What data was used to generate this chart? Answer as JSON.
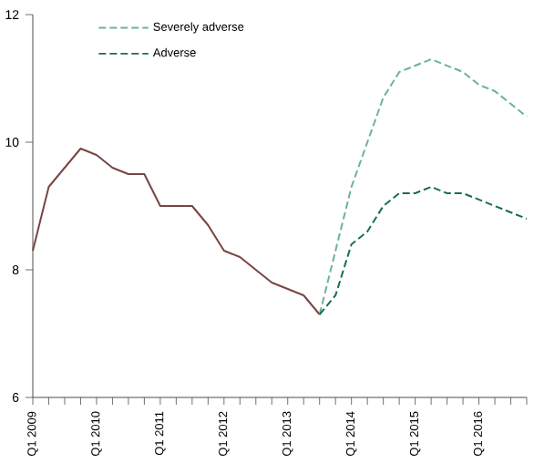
{
  "chart_data": {
    "type": "line",
    "categories": [
      "Q1 2009",
      null,
      null,
      null,
      "Q1 2010",
      null,
      null,
      null,
      "Q1 2011",
      null,
      null,
      null,
      "Q1 2012",
      null,
      null,
      null,
      "Q1 2013",
      null,
      null,
      null,
      "Q1 2014",
      null,
      null,
      null,
      "Q1 2015",
      null,
      null,
      null,
      "Q1 2016",
      null,
      null,
      null
    ],
    "ylim": [
      6,
      12
    ],
    "yticks": [
      6,
      8,
      10,
      12
    ],
    "legend": "top left",
    "grid": false,
    "series": [
      {
        "color": "#7a4444",
        "line_style": "solid",
        "values": [
          8.3,
          9.3,
          9.6,
          9.9,
          9.8,
          9.6,
          9.5,
          9.5,
          9.0,
          9.0,
          9.0,
          8.7,
          8.3,
          8.2,
          8.0,
          7.8,
          7.7,
          7.6,
          7.3,
          null,
          null,
          null,
          null,
          null,
          null,
          null,
          null,
          null,
          null,
          null,
          null,
          null
        ]
      },
      {
        "name": "Severely adverse",
        "color": "#6ab29a",
        "line_style": "dashed",
        "values": [
          null,
          null,
          null,
          null,
          null,
          null,
          null,
          null,
          null,
          null,
          null,
          null,
          null,
          null,
          null,
          null,
          null,
          null,
          7.3,
          8.3,
          9.3,
          10.0,
          10.7,
          11.1,
          11.2,
          11.3,
          11.2,
          11.1,
          10.9,
          10.8,
          10.6,
          10.4
        ]
      },
      {
        "name": "Adverse",
        "color": "#1a6e4a",
        "line_style": "dashed",
        "values": [
          null,
          null,
          null,
          null,
          null,
          null,
          null,
          null,
          null,
          null,
          null,
          null,
          null,
          null,
          null,
          null,
          null,
          null,
          7.3,
          7.6,
          8.4,
          8.6,
          9.0,
          9.2,
          9.2,
          9.3,
          9.2,
          9.2,
          9.1,
          9.0,
          8.9,
          8.8
        ]
      }
    ]
  }
}
